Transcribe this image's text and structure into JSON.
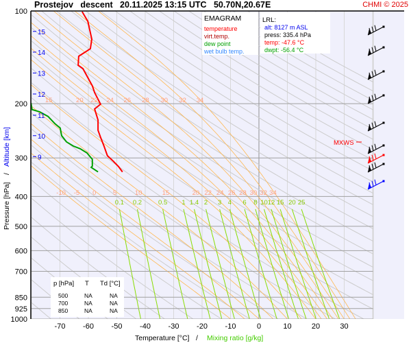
{
  "header": {
    "title": "Prostejov   descent   20.11.2025 13:15 UTC   50.70N,20.67E",
    "brand": "CHMI © 2025"
  },
  "chart_data": {
    "type": "line",
    "diagram": "EMAGRAM",
    "xlabel": "Temperature [°C]",
    "xlabel2": "Mixing ratio [g/kg]",
    "ylabel": "Pressure [hPa]",
    "ylabel2": "Altitude [km]",
    "xlim": [
      -80,
      40
    ],
    "ylim": [
      1000,
      100
    ],
    "yscale": "log",
    "x_ticks": [
      -70,
      -60,
      -50,
      -40,
      -30,
      -20,
      -10,
      0,
      10,
      20,
      30
    ],
    "y_ticks": [
      100,
      200,
      300,
      400,
      500,
      600,
      700,
      850,
      925,
      1000
    ],
    "altitude_ticks_km": [
      15,
      14,
      13,
      12,
      11,
      10,
      9
    ],
    "altitude_tick_pressures": [
      116.5,
      136,
      159,
      186,
      218,
      254,
      297
    ],
    "legend": [
      {
        "label": "temperature",
        "color": "#ff0000"
      },
      {
        "label": "virt.temp.",
        "color": "#b00000"
      },
      {
        "label": "dew point",
        "color": "#00a000"
      },
      {
        "label": "wet bulb temp.",
        "color": "#3388ff"
      }
    ],
    "series": [
      {
        "name": "temperature",
        "color": "#ff0000",
        "p": [
          100.5,
          108,
          123.4,
          132.6,
          140.3,
          150,
          153.9,
          164.5,
          175,
          184,
          200.8,
          208,
          226,
          244,
          257,
          274.5,
          295,
          307,
          320,
          333
        ],
        "t": [
          -62.2,
          -60.2,
          -58.8,
          -59.3,
          -63.4,
          -63.6,
          -61.9,
          -60.2,
          -58.6,
          -57.8,
          -55.7,
          -57.8,
          -56.6,
          -56.6,
          -55.7,
          -54.5,
          -53.3,
          -51.3,
          -49.4,
          -48.0
        ]
      },
      {
        "name": "dew point",
        "color": "#00a000",
        "p": [
          199,
          209,
          212.6,
          220,
          232,
          240,
          254,
          266,
          274.5,
          280,
          289,
          303,
          319,
          322,
          333
        ],
        "t": [
          -80.2,
          -79.8,
          -77.1,
          -74.2,
          -71.8,
          -69.9,
          -69.4,
          -67.7,
          -65.3,
          -62.9,
          -60.5,
          -58.6,
          -58.6,
          -59.0,
          -56.6
        ]
      }
    ],
    "moist_adiabat_labels_upper": [
      15,
      20,
      22,
      24,
      26,
      28,
      30,
      32,
      34
    ],
    "moist_adiabat_labels_lower": [
      -10,
      -5,
      0,
      5,
      10,
      15,
      20,
      22,
      24,
      26,
      28,
      30,
      32,
      34
    ],
    "mixing_ratio_labels": [
      0.1,
      0.2,
      0.5,
      1,
      1.4,
      2,
      3,
      4,
      6,
      8,
      10,
      12,
      15,
      20,
      25
    ],
    "colors": {
      "background": "#f0f0fc",
      "dry_adiabat": "#cccccc",
      "moist_adiabat": "#ffb850",
      "mixing_ratio": "#88dd00",
      "isobar": "#a0a0a0",
      "altitude": "#0000ee"
    }
  },
  "lrl": {
    "title": "LRL:",
    "alt": "alt: 8127 m ASL",
    "press": "press: 335.4 hPa",
    "temp": "temp: -47.6 °C",
    "dwpt": "dwpt: -56.4 °C"
  },
  "table": {
    "headers": [
      "p [hPa]",
      "T",
      "Td [°C]"
    ],
    "rows": [
      [
        "500",
        "NA",
        "NA"
      ],
      [
        "700",
        "NA",
        "NA"
      ],
      [
        "850",
        "NA",
        "NA"
      ]
    ]
  },
  "wind": {
    "mxws_label": "MXWS",
    "barb_colors": [
      "#000000",
      "#000000",
      "#000000",
      "#000000",
      "#000000",
      "#000000",
      "#ff0000",
      "#000000",
      "#0000ff"
    ]
  }
}
